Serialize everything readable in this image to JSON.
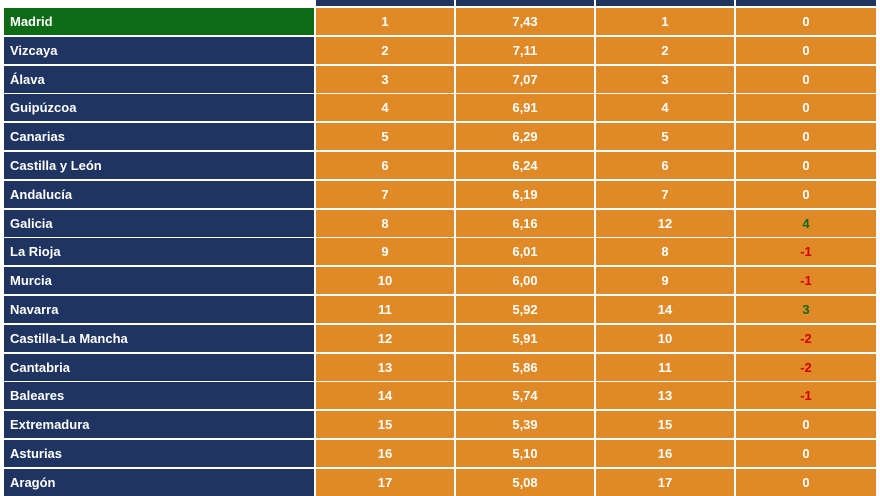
{
  "colors": {
    "header_navy": "#1f3461",
    "leader_green": "#0d6b16",
    "cell_orange": "#e08a27",
    "positive_green": "#0d6b16",
    "negative_red": "#d40000"
  },
  "rows": [
    {
      "region": "Madrid",
      "rank": "1",
      "score": "7,43",
      "prev_rank": "1",
      "change": "0",
      "status": "zero",
      "leader": true
    },
    {
      "region": "Vizcaya",
      "rank": "2",
      "score": "7,11",
      "prev_rank": "2",
      "change": "0",
      "status": "zero"
    },
    {
      "region": "Álava",
      "rank": "3",
      "score": "7,07",
      "prev_rank": "3",
      "change": "0",
      "status": "zero"
    },
    {
      "region": "Guipúzcoa",
      "rank": "4",
      "score": "6,91",
      "prev_rank": "4",
      "change": "0",
      "status": "zero"
    },
    {
      "region": "Canarias",
      "rank": "5",
      "score": "6,29",
      "prev_rank": "5",
      "change": "0",
      "status": "zero"
    },
    {
      "region": "Castilla y León",
      "rank": "6",
      "score": "6,24",
      "prev_rank": "6",
      "change": "0",
      "status": "zero"
    },
    {
      "region": "Andalucía",
      "rank": "7",
      "score": "6,19",
      "prev_rank": "7",
      "change": "0",
      "status": "zero"
    },
    {
      "region": "Galicia",
      "rank": "8",
      "score": "6,16",
      "prev_rank": "12",
      "change": "4",
      "status": "pos"
    },
    {
      "region": "La Rioja",
      "rank": "9",
      "score": "6,01",
      "prev_rank": "8",
      "change": "-1",
      "status": "neg"
    },
    {
      "region": "Murcia",
      "rank": "10",
      "score": "6,00",
      "prev_rank": "9",
      "change": "-1",
      "status": "neg"
    },
    {
      "region": "Navarra",
      "rank": "11",
      "score": "5,92",
      "prev_rank": "14",
      "change": "3",
      "status": "pos"
    },
    {
      "region": "Castilla-La Mancha",
      "rank": "12",
      "score": "5,91",
      "prev_rank": "10",
      "change": "-2",
      "status": "neg"
    },
    {
      "region": "Cantabria",
      "rank": "13",
      "score": "5,86",
      "prev_rank": "11",
      "change": "-2",
      "status": "neg"
    },
    {
      "region": "Baleares",
      "rank": "14",
      "score": "5,74",
      "prev_rank": "13",
      "change": "-1",
      "status": "neg"
    },
    {
      "region": "Extremadura",
      "rank": "15",
      "score": "5,39",
      "prev_rank": "15",
      "change": "0",
      "status": "zero"
    },
    {
      "region": "Asturias",
      "rank": "16",
      "score": "5,10",
      "prev_rank": "16",
      "change": "0",
      "status": "zero"
    },
    {
      "region": "Aragón",
      "rank": "17",
      "score": "5,08",
      "prev_rank": "17",
      "change": "0",
      "status": "zero"
    }
  ]
}
